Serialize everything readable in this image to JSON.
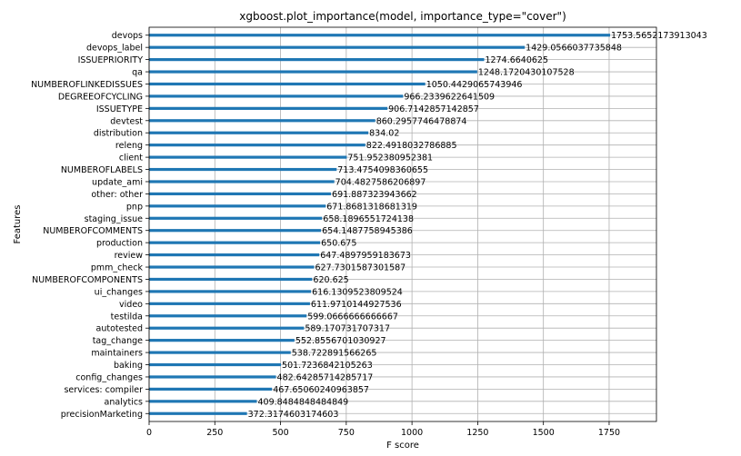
{
  "chart_data": {
    "type": "bar",
    "orientation": "horizontal",
    "title": "xgboost.plot_importance(model, importance_type=\"cover\")",
    "xlabel": "F score",
    "ylabel": "Features",
    "xlim": [
      0,
      1930
    ],
    "xticks": [
      0,
      250,
      500,
      750,
      1000,
      1250,
      1500,
      1750
    ],
    "grid": true,
    "bar_color": "#1f77b4",
    "categories": [
      "devops",
      "devops_label",
      "ISSUEPRIORITY",
      "qa",
      "NUMBEROFLINKEDISSUES",
      "DEGREEOFCYCLING",
      "ISSUETYPE",
      "devtest",
      "distribution",
      "releng",
      "client",
      "NUMBEROFLABELS",
      "update_ami",
      "other: other",
      "pnp",
      "staging_issue",
      "NUMBEROFCOMMENTS",
      "production",
      "review",
      "pmm_check",
      "NUMBEROFCOMPONENTS",
      "ui_changes",
      "video",
      "testilda",
      "autotested",
      "tag_change",
      "maintainers",
      "baking",
      "config_changes",
      "services: compiler",
      "analytics",
      "precisionMarketing"
    ],
    "values": [
      1753.5652173913043,
      1429.0566037735848,
      1274.6640625,
      1248.1720430107528,
      1050.4429065743946,
      966.2339622641509,
      906.7142857142857,
      860.2957746478874,
      834.02,
      822.4918032786885,
      751.952380952381,
      713.4754098360655,
      704.4827586206897,
      691.887323943662,
      671.8681318681319,
      658.1896551724138,
      654.1487758945386,
      650.675,
      647.4897959183673,
      627.7301587301587,
      620.625,
      616.1309523809524,
      611.9710144927536,
      599.0666666666667,
      589.170731707317,
      552.8556701030927,
      538.722891566265,
      501.7236842105263,
      482.64285714285717,
      467.65060240963857,
      409.8484848484849,
      372.3174603174603
    ],
    "value_labels": [
      "1753.5652173913043",
      "1429.0566037735848",
      "1274.6640625",
      "1248.1720430107528",
      "1050.4429065743946",
      "966.2339622641509",
      "906.7142857142857",
      "860.2957746478874",
      "834.02",
      "822.4918032786885",
      "751.952380952381",
      "713.4754098360655",
      "704.4827586206897",
      "691.887323943662",
      "671.8681318681319",
      "658.1896551724138",
      "654.1487758945386",
      "650.675",
      "647.4897959183673",
      "627.7301587301587",
      "620.625",
      "616.1309523809524",
      "611.9710144927536",
      "599.0666666666667",
      "589.170731707317",
      "552.8556701030927",
      "538.722891566265",
      "501.7236842105263",
      "482.64285714285717",
      "467.65060240963857",
      "409.8484848484849",
      "372.3174603174603"
    ]
  }
}
